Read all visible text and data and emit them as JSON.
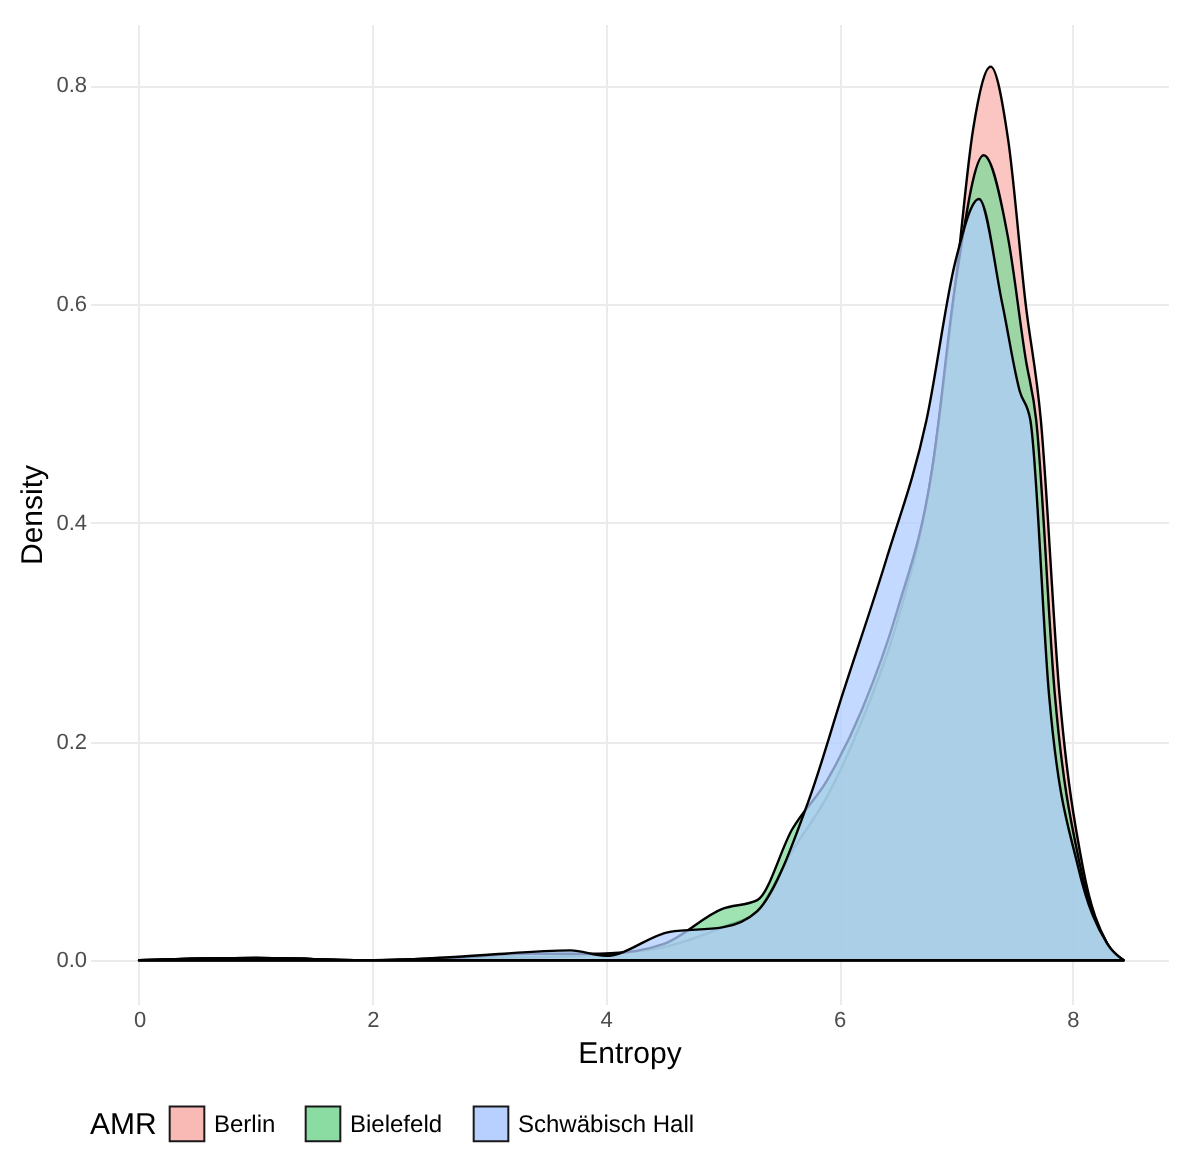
{
  "chart_data": {
    "type": "area",
    "xlabel": "Entropy",
    "ylabel": "Density",
    "legend_title": "AMR",
    "legend": "bottom",
    "grid": true,
    "xlim": [
      -0.42,
      8.82
    ],
    "ylim": [
      -0.04,
      0.856
    ],
    "xticks": [
      0,
      2,
      4,
      6,
      8
    ],
    "yticks": [
      {
        "value": 0,
        "label": "0.0"
      },
      {
        "value": 0.2,
        "label": "0.2"
      },
      {
        "value": 0.4,
        "label": "0.4"
      },
      {
        "value": 0.6,
        "label": "0.6"
      },
      {
        "value": 0.8,
        "label": "0.8"
      }
    ],
    "series": [
      {
        "name": "Berlin",
        "color": "#f9b3ae",
        "x": [
          0,
          1,
          2,
          2.7,
          3.5,
          4,
          4.5,
          5,
          5.3,
          5.6,
          5.9,
          6.2,
          6.5,
          6.8,
          7.0,
          7.15,
          7.3,
          7.45,
          7.6,
          7.73,
          7.89,
          8.09,
          8.3,
          8.44
        ],
        "values": [
          0,
          0.002,
          0,
          0.002,
          0.003,
          0.006,
          0.012,
          0.03,
          0.045,
          0.1,
          0.15,
          0.22,
          0.31,
          0.45,
          0.62,
          0.76,
          0.817,
          0.75,
          0.6,
          0.494,
          0.243,
          0.085,
          0.015,
          0
        ]
      },
      {
        "name": "Bielefeld",
        "color": "#7fd99a",
        "x": [
          0,
          1,
          2,
          2.7,
          3.3,
          4,
          4.5,
          5,
          5.3,
          5.6,
          5.9,
          6.2,
          6.5,
          6.8,
          7.0,
          7.24,
          7.45,
          7.6,
          7.69,
          7.85,
          8.07,
          8.3,
          8.44
        ],
        "values": [
          0,
          0.002,
          0,
          0.002,
          0.006,
          0.006,
          0.015,
          0.047,
          0.055,
          0.12,
          0.165,
          0.23,
          0.32,
          0.45,
          0.62,
          0.736,
          0.66,
          0.55,
          0.494,
          0.243,
          0.085,
          0.015,
          0
        ]
      },
      {
        "name": "Schwäbisch Hall",
        "color": "#b0ccff",
        "x": [
          0,
          1,
          2,
          2.7,
          3.7,
          4,
          4.55,
          5,
          5.3,
          5.75,
          6.03,
          6.41,
          6.75,
          7.0,
          7.2,
          7.4,
          7.55,
          7.64,
          7.8,
          8.05,
          8.3,
          8.44
        ],
        "values": [
          0,
          0.002,
          0,
          0.003,
          0.009,
          0.004,
          0.026,
          0.03,
          0.045,
          0.149,
          0.243,
          0.368,
          0.494,
          0.64,
          0.696,
          0.6,
          0.52,
          0.494,
          0.243,
          0.085,
          0.015,
          0
        ]
      }
    ]
  }
}
